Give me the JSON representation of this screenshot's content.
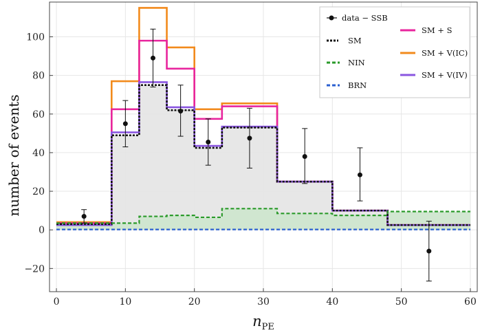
{
  "chart_data": {
    "type": "step-histogram",
    "xlabel": "n",
    "xlabel_sub": "PE",
    "ylabel": "number of events",
    "xlim": [
      -1,
      61
    ],
    "ylim": [
      -32,
      118
    ],
    "xticks": [
      0,
      10,
      20,
      30,
      40,
      50,
      60
    ],
    "yticks": [
      -20,
      0,
      20,
      40,
      60,
      80,
      100
    ],
    "ytick_labels": [
      "−20",
      "0",
      "20",
      "40",
      "60",
      "80",
      "100"
    ],
    "grid": true,
    "legend_position": "top-right",
    "bin_edges": [
      0,
      8,
      12,
      16,
      20,
      24,
      32,
      40,
      48,
      60
    ],
    "data_points": {
      "name": "data − SSB",
      "x": [
        4,
        10,
        14,
        18,
        22,
        28,
        36,
        44,
        54
      ],
      "y": [
        7,
        55,
        89,
        61.5,
        45.5,
        47.5,
        38,
        28.5,
        -11
      ],
      "err_low": [
        3.5,
        12,
        15,
        13,
        12,
        15.5,
        14,
        13.5,
        15.5
      ],
      "err_high": [
        3.5,
        12,
        15,
        13.5,
        12,
        15.5,
        14.5,
        14,
        15.5
      ]
    },
    "series": [
      {
        "name": "SM",
        "values": [
          3,
          49,
          75,
          62,
          42.5,
          53,
          25,
          10,
          2.5
        ],
        "color": "#111111",
        "dash": "dotted"
      },
      {
        "name": "NIN",
        "values": [
          3.5,
          3.5,
          7,
          7.5,
          6.5,
          11,
          8.5,
          7.5,
          9.5
        ],
        "color": "#2a9a2a",
        "dash": "dashed"
      },
      {
        "name": "BRN",
        "values": [
          0.2,
          0.2,
          0.2,
          0.2,
          0.2,
          0.2,
          0.2,
          0.2,
          0.2
        ],
        "color": "#2a5fd0",
        "dash": "dashed"
      },
      {
        "name": "SM + S",
        "values": [
          3.5,
          62.5,
          98,
          83.5,
          57.5,
          64,
          25,
          10,
          2.5
        ],
        "color": "#e8259e",
        "dash": "solid"
      },
      {
        "name": "SM + V(IC)",
        "values": [
          4,
          77,
          115,
          94.5,
          62.5,
          65.5,
          25,
          10,
          2.5
        ],
        "color": "#f28a1c",
        "dash": "solid"
      },
      {
        "name": "SM + V(IV)",
        "values": [
          2.5,
          50.5,
          76.5,
          63.5,
          43.5,
          53.5,
          25,
          10,
          2.5
        ],
        "color": "#8a55e0",
        "dash": "solid"
      }
    ]
  }
}
